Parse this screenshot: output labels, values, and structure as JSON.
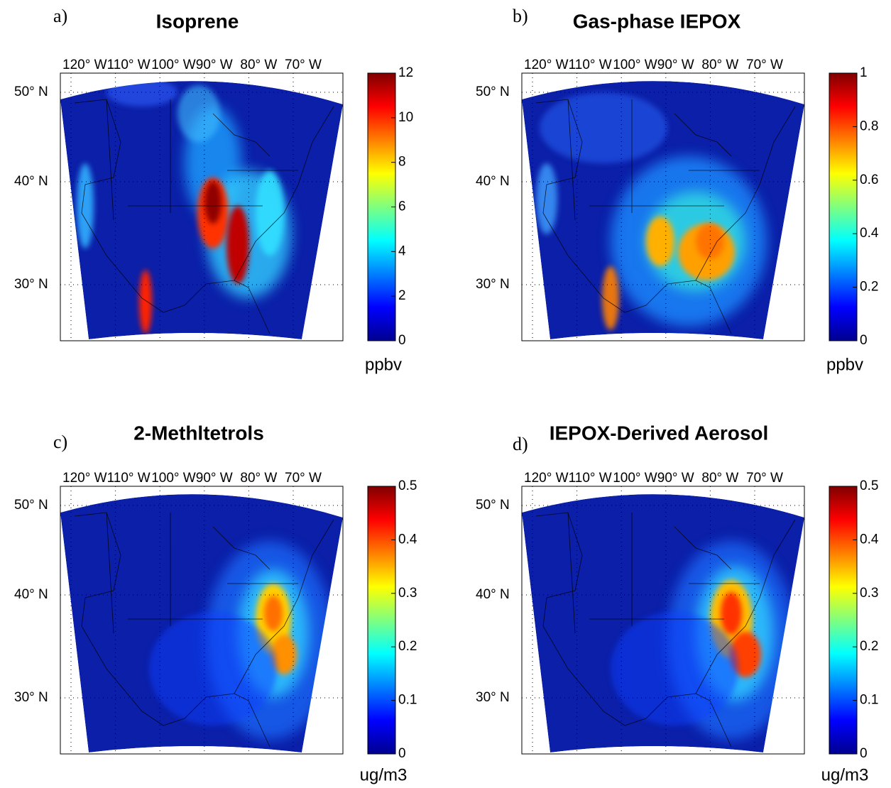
{
  "panels": [
    {
      "label": "a)",
      "title": "Isoprene",
      "unit": "ppbv",
      "colorbar": {
        "lim": [
          0,
          12
        ],
        "ticks": [
          0,
          2,
          4,
          6,
          8,
          10,
          12
        ]
      },
      "lon_ticks": [
        {
          "value": -120,
          "label": "120° W"
        },
        {
          "value": -110,
          "label": "110° W"
        },
        {
          "value": -100,
          "label": "100° W"
        },
        {
          "value": -90,
          "label": "90° W"
        },
        {
          "value": -80,
          "label": "80° W"
        },
        {
          "value": -70,
          "label": "70° W"
        }
      ],
      "lat_ticks": [
        {
          "value": 30,
          "label": "30° N"
        },
        {
          "value": 40,
          "label": "40° N"
        },
        {
          "value": 50,
          "label": "50° N"
        }
      ]
    },
    {
      "label": "b)",
      "title": "Gas-phase IEPOX",
      "unit": "ppbv",
      "colorbar": {
        "lim": [
          0,
          1
        ],
        "ticks": [
          0,
          0.2,
          0.4,
          0.6,
          0.8,
          1
        ]
      },
      "lon_ticks": [
        {
          "value": -120,
          "label": "120° W"
        },
        {
          "value": -110,
          "label": "110° W"
        },
        {
          "value": -100,
          "label": "100° W"
        },
        {
          "value": -90,
          "label": "90° W"
        },
        {
          "value": -80,
          "label": "80° W"
        },
        {
          "value": -70,
          "label": "70° W"
        }
      ],
      "lat_ticks": [
        {
          "value": 30,
          "label": "30° N"
        },
        {
          "value": 40,
          "label": "40° N"
        },
        {
          "value": 50,
          "label": "50° N"
        }
      ]
    },
    {
      "label": "c)",
      "title": "2-Methltetrols",
      "unit": "ug/m3",
      "colorbar": {
        "lim": [
          0,
          0.5
        ],
        "ticks": [
          0,
          0.1,
          0.2,
          0.3,
          0.4,
          0.5
        ]
      },
      "lon_ticks": [
        {
          "value": -120,
          "label": "120° W"
        },
        {
          "value": -110,
          "label": "110° W"
        },
        {
          "value": -100,
          "label": "100° W"
        },
        {
          "value": -90,
          "label": "90° W"
        },
        {
          "value": -80,
          "label": "80° W"
        },
        {
          "value": -70,
          "label": "70° W"
        }
      ],
      "lat_ticks": [
        {
          "value": 30,
          "label": "30° N"
        },
        {
          "value": 40,
          "label": "40° N"
        },
        {
          "value": 50,
          "label": "50° N"
        }
      ]
    },
    {
      "label": "d)",
      "title": "IEPOX-Derived Aerosol",
      "unit": "ug/m3",
      "colorbar": {
        "lim": [
          0,
          0.5
        ],
        "ticks": [
          0,
          0.1,
          0.2,
          0.3,
          0.4,
          0.5
        ]
      },
      "lon_ticks": [
        {
          "value": -120,
          "label": "120° W"
        },
        {
          "value": -110,
          "label": "110° W"
        },
        {
          "value": -100,
          "label": "100° W"
        },
        {
          "value": -90,
          "label": "90° W"
        },
        {
          "value": -80,
          "label": "80° W"
        },
        {
          "value": -70,
          "label": "70° W"
        }
      ],
      "lat_ticks": [
        {
          "value": 30,
          "label": "30° N"
        },
        {
          "value": 40,
          "label": "40° N"
        },
        {
          "value": 50,
          "label": "50° N"
        }
      ]
    }
  ]
}
